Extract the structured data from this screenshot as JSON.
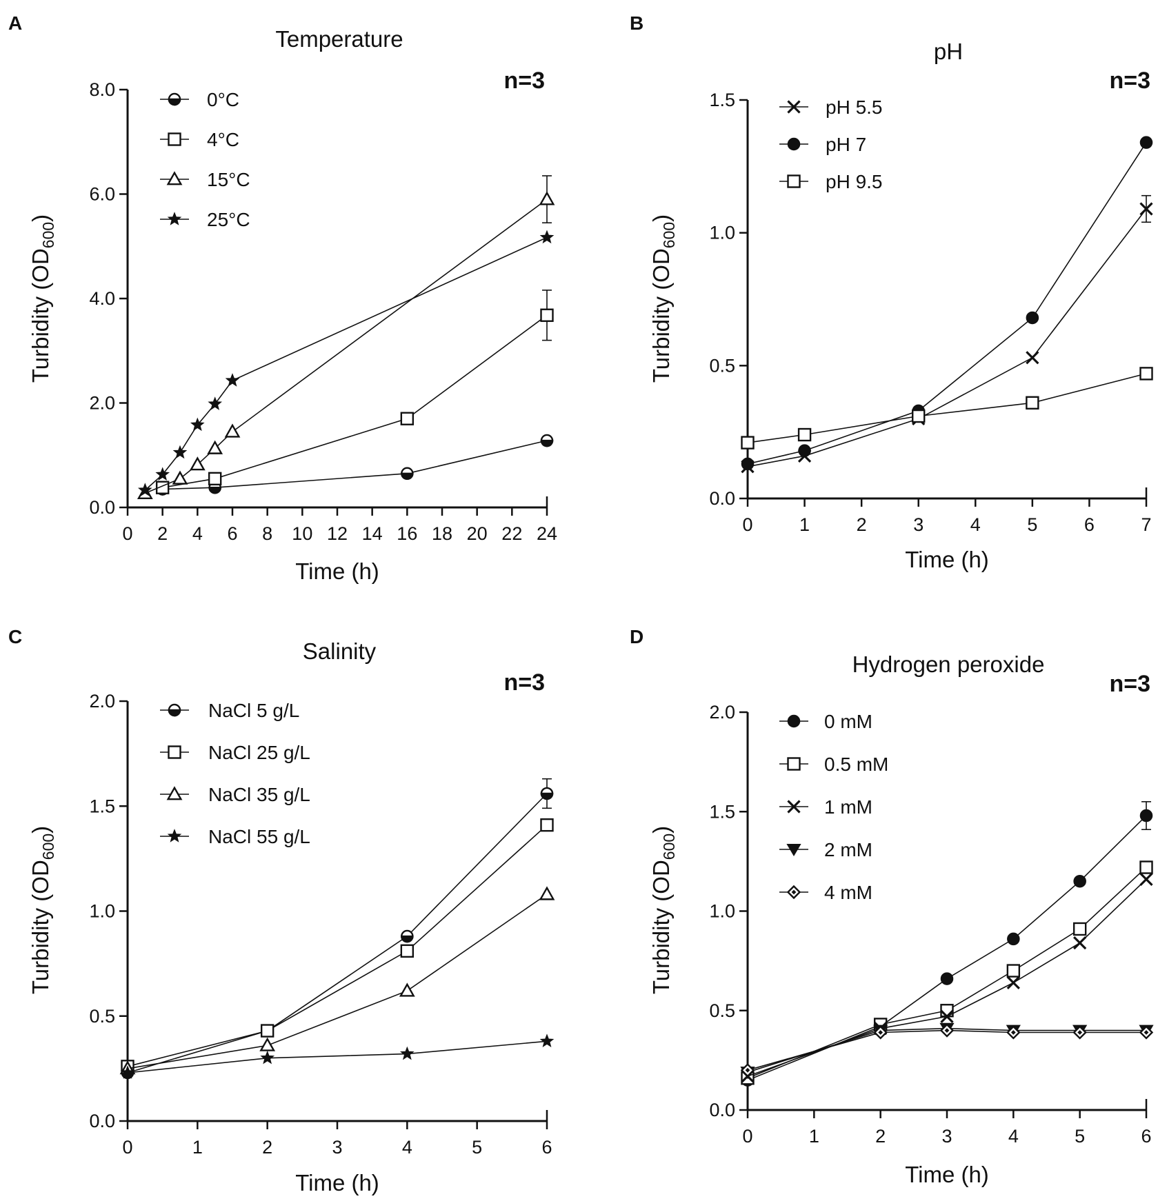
{
  "figure": {
    "panels": [
      "A",
      "B",
      "C",
      "D"
    ]
  },
  "chart_data": [
    {
      "panel": "A",
      "type": "line",
      "title": "Temperature",
      "annotation": "n=3",
      "xlabel": "Time (h)",
      "ylabel_main": "Turbidity (OD",
      "ylabel_sub": "600",
      "ylabel_close": ")",
      "xlim": [
        0,
        24
      ],
      "ylim": [
        0,
        8
      ],
      "xticks": [
        0,
        2,
        4,
        6,
        8,
        10,
        12,
        14,
        16,
        18,
        20,
        22,
        24
      ],
      "xtick_labels": [
        "0",
        "2",
        "4",
        "6",
        "8",
        "10",
        "12",
        "14",
        "16",
        "18",
        "20",
        "22",
        "24"
      ],
      "yticks": [
        0,
        2,
        4,
        6,
        8
      ],
      "ytick_labels": [
        "0.0",
        "2.0",
        "4.0",
        "6.0",
        "8.0"
      ],
      "series": [
        {
          "name": "0°C",
          "marker": "half-circle",
          "x": [
            2,
            5,
            16,
            24
          ],
          "y": [
            0.35,
            0.38,
            0.65,
            1.28
          ],
          "err": [
            0,
            0,
            0,
            0
          ]
        },
        {
          "name": "4°C",
          "marker": "square",
          "x": [
            2,
            5,
            16,
            24
          ],
          "y": [
            0.38,
            0.55,
            1.7,
            3.68
          ],
          "err": [
            0,
            0,
            0,
            0.48
          ]
        },
        {
          "name": "15°C",
          "marker": "triangle",
          "x": [
            1,
            3,
            4,
            5,
            6,
            24
          ],
          "y": [
            0.27,
            0.55,
            0.82,
            1.13,
            1.45,
            5.9
          ],
          "err": [
            0,
            0,
            0,
            0,
            0,
            0.45
          ]
        },
        {
          "name": "25°C",
          "marker": "star",
          "x": [
            1,
            2,
            3,
            4,
            5,
            6,
            24
          ],
          "y": [
            0.33,
            0.63,
            1.05,
            1.58,
            1.98,
            2.43,
            5.17
          ],
          "err": [
            0,
            0,
            0,
            0,
            0,
            0,
            0
          ]
        }
      ]
    },
    {
      "panel": "B",
      "type": "line",
      "title": "pH",
      "annotation": "n=3",
      "xlabel": "Time (h)",
      "ylabel_main": "Turbidity (OD",
      "ylabel_sub": "600",
      "ylabel_close": ")",
      "xlim": [
        0,
        7
      ],
      "ylim": [
        0,
        1.5
      ],
      "xticks": [
        0,
        1,
        2,
        3,
        4,
        5,
        6,
        7
      ],
      "xtick_labels": [
        "0",
        "1",
        "2",
        "3",
        "4",
        "5",
        "6",
        "7"
      ],
      "yticks": [
        0,
        0.5,
        1.0,
        1.5
      ],
      "ytick_labels": [
        "0.0",
        "0.5",
        "1.0",
        "1.5"
      ],
      "series": [
        {
          "name": "pH 5.5",
          "marker": "x",
          "x": [
            0,
            1,
            3,
            5,
            7
          ],
          "y": [
            0.12,
            0.16,
            0.3,
            0.53,
            1.09
          ],
          "err": [
            0,
            0,
            0,
            0,
            0.05
          ]
        },
        {
          "name": "pH 7",
          "marker": "circle",
          "x": [
            0,
            1,
            3,
            5,
            7
          ],
          "y": [
            0.13,
            0.18,
            0.33,
            0.68,
            1.34
          ],
          "err": [
            0,
            0,
            0,
            0,
            0
          ]
        },
        {
          "name": "pH 9.5",
          "marker": "square",
          "x": [
            0,
            1,
            3,
            5,
            7
          ],
          "y": [
            0.21,
            0.24,
            0.31,
            0.36,
            0.47
          ],
          "err": [
            0,
            0,
            0,
            0,
            0
          ]
        }
      ]
    },
    {
      "panel": "C",
      "type": "line",
      "title": "Salinity",
      "annotation": "n=3",
      "xlabel": "Time (h)",
      "ylabel_main": "Turbidity (OD",
      "ylabel_sub": "600",
      "ylabel_close": ")",
      "xlim": [
        0,
        6
      ],
      "ylim": [
        0,
        2
      ],
      "xticks": [
        0,
        1,
        2,
        3,
        4,
        5,
        6
      ],
      "xtick_labels": [
        "0",
        "1",
        "2",
        "3",
        "4",
        "5",
        "6"
      ],
      "yticks": [
        0,
        0.5,
        1.0,
        1.5,
        2.0
      ],
      "ytick_labels": [
        "0.0",
        "0.5",
        "1.0",
        "1.5",
        "2.0"
      ],
      "series": [
        {
          "name": "NaCl 5 g/L",
          "marker": "half-circle",
          "x": [
            0,
            2,
            4,
            6
          ],
          "y": [
            0.23,
            0.43,
            0.88,
            1.56
          ],
          "err": [
            0,
            0,
            0,
            0.07
          ]
        },
        {
          "name": "NaCl 25 g/L",
          "marker": "square",
          "x": [
            0,
            2,
            4,
            6
          ],
          "y": [
            0.26,
            0.43,
            0.81,
            1.41
          ],
          "err": [
            0,
            0,
            0,
            0
          ]
        },
        {
          "name": "NaCl 35 g/L",
          "marker": "triangle",
          "x": [
            0,
            2,
            4,
            6
          ],
          "y": [
            0.25,
            0.36,
            0.62,
            1.08
          ],
          "err": [
            0,
            0,
            0,
            0
          ]
        },
        {
          "name": "NaCl 55 g/L",
          "marker": "star",
          "x": [
            0,
            2,
            4,
            6
          ],
          "y": [
            0.23,
            0.3,
            0.32,
            0.38
          ],
          "err": [
            0,
            0,
            0,
            0
          ]
        }
      ]
    },
    {
      "panel": "D",
      "type": "line",
      "title": "Hydrogen peroxide",
      "annotation": "n=3",
      "xlabel": "Time (h)",
      "ylabel_main": "Turbidity (OD",
      "ylabel_sub": "600",
      "ylabel_close": ")",
      "xlim": [
        0,
        6
      ],
      "ylim": [
        0,
        2
      ],
      "xticks": [
        0,
        1,
        2,
        3,
        4,
        5,
        6
      ],
      "xtick_labels": [
        "0",
        "1",
        "2",
        "3",
        "4",
        "5",
        "6"
      ],
      "yticks": [
        0,
        0.5,
        1.0,
        1.5,
        2.0
      ],
      "ytick_labels": [
        "0.0",
        "0.5",
        "1.0",
        "1.5",
        "2.0"
      ],
      "series": [
        {
          "name": "0 mM",
          "marker": "circle",
          "x": [
            0,
            2,
            3,
            4,
            5,
            6
          ],
          "y": [
            0.15,
            0.42,
            0.66,
            0.86,
            1.15,
            1.48
          ],
          "err": [
            0,
            0,
            0,
            0,
            0,
            0.07
          ]
        },
        {
          "name": "0.5 mM",
          "marker": "square",
          "x": [
            0,
            2,
            3,
            4,
            5,
            6
          ],
          "y": [
            0.16,
            0.43,
            0.5,
            0.7,
            0.91,
            1.22
          ],
          "err": [
            0,
            0,
            0,
            0,
            0,
            0
          ]
        },
        {
          "name": "1 mM",
          "marker": "x",
          "x": [
            0,
            2,
            3,
            4,
            5,
            6
          ],
          "y": [
            0.17,
            0.41,
            0.47,
            0.64,
            0.84,
            1.16
          ],
          "err": [
            0,
            0,
            0,
            0,
            0,
            0
          ]
        },
        {
          "name": "2 mM",
          "marker": "triangle-down",
          "x": [
            0,
            2,
            3,
            4,
            5,
            6
          ],
          "y": [
            0.19,
            0.4,
            0.41,
            0.4,
            0.4,
            0.4
          ],
          "err": [
            0,
            0,
            0,
            0,
            0,
            0
          ]
        },
        {
          "name": "4 mM",
          "marker": "diamond",
          "x": [
            0,
            2,
            3,
            4,
            5,
            6
          ],
          "y": [
            0.2,
            0.39,
            0.4,
            0.39,
            0.39,
            0.39
          ],
          "err": [
            0,
            0,
            0,
            0,
            0,
            0
          ]
        }
      ]
    }
  ]
}
